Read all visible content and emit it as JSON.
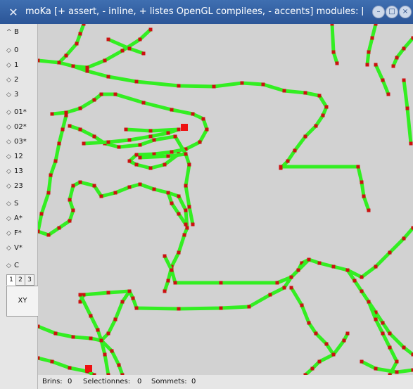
{
  "window": {
    "title": "moKa [+ assert, - inline, + listes OpenGL compilees, - accents] modules: [+ maill",
    "app_icon": "x-logo-icon",
    "buttons": [
      "minimize",
      "maximize",
      "close"
    ]
  },
  "sidebar": {
    "items": [
      {
        "label": "B",
        "chevron": "^"
      },
      {
        "label": "0",
        "chevron": "◇"
      },
      {
        "label": "1",
        "chevron": "◇"
      },
      {
        "label": "2",
        "chevron": "◇"
      },
      {
        "label": "3",
        "chevron": "◇"
      },
      {
        "label": "01*",
        "chevron": "◇"
      },
      {
        "label": "02*",
        "chevron": "◇"
      },
      {
        "label": "03*",
        "chevron": "◇"
      },
      {
        "label": "12",
        "chevron": "◇"
      },
      {
        "label": "13",
        "chevron": "◇"
      },
      {
        "label": "23",
        "chevron": "◇"
      },
      {
        "label": "S",
        "chevron": "◇"
      },
      {
        "label": "A*",
        "chevron": "◇"
      },
      {
        "label": "F*",
        "chevron": "◇"
      },
      {
        "label": "V*",
        "chevron": "◇"
      },
      {
        "label": "C",
        "chevron": "◇"
      }
    ],
    "tabs": [
      "1",
      "2",
      "3"
    ],
    "active_tab": "1",
    "panel_label": "XY"
  },
  "status": {
    "brins_label": "Brins:",
    "brins": "0",
    "selectionnes_label": "Selectionnes:",
    "selectionnes": "0",
    "sommets_label": "Sommets:",
    "sommets": "0"
  },
  "colors": {
    "edge": "#33ee22",
    "vertex": "#cc1111",
    "background": "#d2d2d2",
    "titlebar": "#2f5b9e"
  }
}
